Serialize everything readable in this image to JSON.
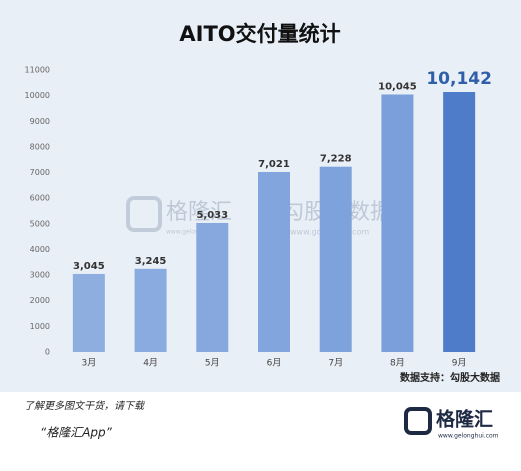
{
  "chart_data": {
    "type": "bar",
    "title": "AITO交付量统计",
    "categories": [
      "3月",
      "4月",
      "5月",
      "6月",
      "7月",
      "8月",
      "9月"
    ],
    "values": [
      3045,
      3245,
      5033,
      7021,
      7228,
      10045,
      10142
    ],
    "value_labels": [
      "3,045",
      "3,245",
      "5,033",
      "7,021",
      "7,228",
      "10,045",
      "10,142"
    ],
    "colors": [
      "#8eaee0",
      "#8aabdf",
      "#86a8de",
      "#82a5dd",
      "#7ea2dc",
      "#7a9fdb",
      "#4f7cc8"
    ],
    "ylim": [
      0,
      11000
    ],
    "yticks": [
      0,
      1000,
      2000,
      3000,
      4000,
      5000,
      6000,
      7000,
      8000,
      9000,
      10000,
      11000
    ],
    "source": "数据支持：勾股大数据"
  },
  "watermark": {
    "left": "格隆汇",
    "left_url": "www.gelonghui.com",
    "right": "勾股大数据",
    "right_url": "www.gogudata.com"
  },
  "footer": {
    "prompt": "了解更多图文干货，请下载",
    "app": "“格隆汇App”"
  },
  "logo": {
    "name": "格隆汇",
    "url": "www.gelonghui.com"
  }
}
